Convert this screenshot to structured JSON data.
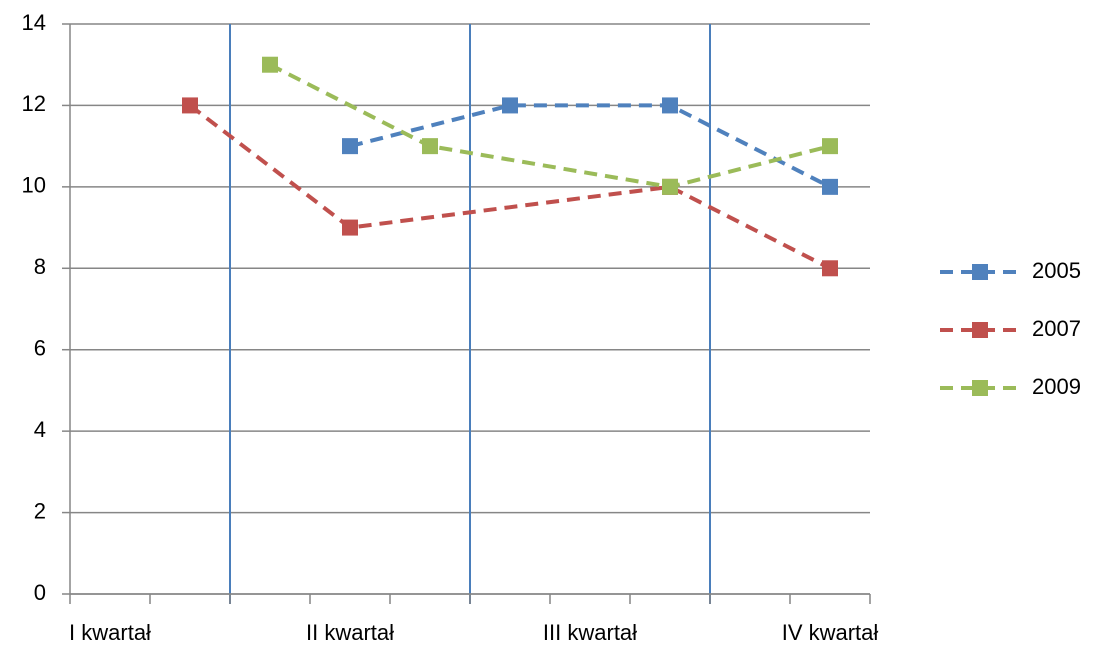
{
  "chart_data": {
    "type": "line",
    "categories": [
      "I kwartał",
      null,
      null,
      "II kwartał",
      null,
      null,
      "III kwartał",
      null,
      null,
      "IV kwartał"
    ],
    "series": [
      {
        "name": "2005",
        "color": "#4f81bd",
        "values": [
          null,
          null,
          null,
          11,
          null,
          12,
          null,
          12,
          null,
          10
        ]
      },
      {
        "name": "2007",
        "color": "#c0504d",
        "values": [
          null,
          12,
          null,
          9,
          null,
          null,
          null,
          10,
          null,
          8
        ]
      },
      {
        "name": "2009",
        "color": "#9bbb59",
        "values": [
          null,
          null,
          13,
          null,
          11,
          null,
          null,
          10,
          null,
          11
        ]
      }
    ],
    "span_gaps": true,
    "ylim": [
      0,
      14
    ],
    "yticks": [
      0,
      2,
      4,
      6,
      8,
      10,
      12,
      14
    ],
    "grid": true,
    "legend": "right"
  }
}
